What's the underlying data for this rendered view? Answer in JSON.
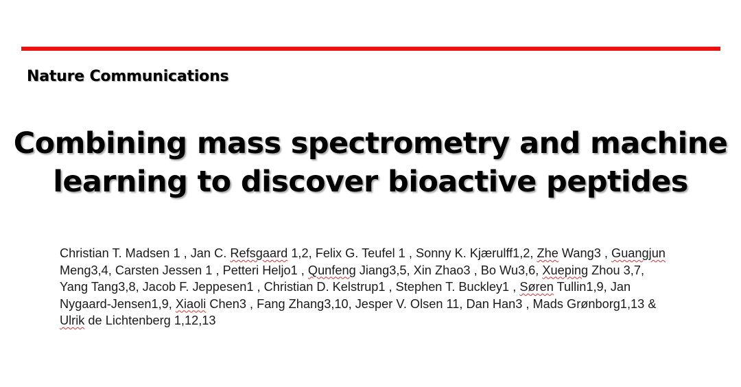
{
  "accent_color": "#ee1111",
  "journal": "Nature Communications",
  "title_lines": [
    "Combining mass spectrometry and machine",
    "learning to discover bioactive peptides"
  ],
  "author_lines": [
    [
      {
        "t": "Christian T. Madsen 1 , Jan C. "
      },
      {
        "t": "Refsgaard",
        "sq": true
      },
      {
        "t": " 1,2, Felix G. Teufel 1 , Sonny K. Kjærulff1,2, "
      },
      {
        "t": "Zhe",
        "sq": true
      },
      {
        "t": " Wang3 , "
      },
      {
        "t": "Guangjun",
        "sq": true
      }
    ],
    [
      {
        "t": "Meng3,4, Carsten Jessen 1 , Petteri Heljo1 , "
      },
      {
        "t": "Qunfeng",
        "sq": true
      },
      {
        "t": " Jiang3,5, Xin Zhao3 , Bo Wu3,6, "
      },
      {
        "t": "Xueping",
        "sq": true
      },
      {
        "t": " Zhou 3,7,"
      }
    ],
    [
      {
        "t": "Yang Tang3,8, Jacob F. Jeppesen1 , Christian D. Kelstrup1 , Stephen T. Buckley1 , "
      },
      {
        "t": "Søren",
        "sq": true
      },
      {
        "t": " Tullin1,9, Jan"
      }
    ],
    [
      {
        "t": "Nygaard-Jensen1,9, "
      },
      {
        "t": "Xiaoli",
        "sq": true
      },
      {
        "t": " Chen3 , Fang Zhang3,10, Jesper V. Olsen 11, Dan Han3 , Mads Grønborg1,13 &"
      }
    ],
    [
      {
        "t": "Ulrik",
        "sq": true
      },
      {
        "t": " de Lichtenberg 1,12,13"
      }
    ]
  ]
}
